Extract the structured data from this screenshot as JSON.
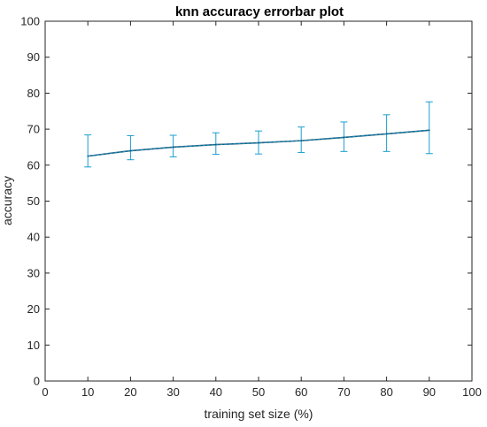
{
  "chart_data": {
    "type": "line",
    "title": "knn accuracy errorbar plot",
    "xlabel": "training set size (%)",
    "ylabel": "accuracy",
    "xlim": [
      0,
      100
    ],
    "ylim": [
      0,
      100
    ],
    "xticks": [
      0,
      10,
      20,
      30,
      40,
      50,
      60,
      70,
      80,
      90,
      100
    ],
    "yticks": [
      0,
      10,
      20,
      30,
      40,
      50,
      60,
      70,
      80,
      90,
      100
    ],
    "grid": false,
    "series": [
      {
        "color": "#1a9ecf",
        "line_color": "#1a5a7a",
        "errorbars": true,
        "x": [
          10,
          20,
          30,
          40,
          50,
          60,
          70,
          80,
          90
        ],
        "y": [
          62.5,
          64.0,
          65.0,
          65.7,
          66.2,
          66.8,
          67.7,
          68.7,
          69.7
        ],
        "lower": [
          59.5,
          61.5,
          62.3,
          63.0,
          63.1,
          63.5,
          63.8,
          63.8,
          63.2
        ],
        "upper": [
          68.4,
          68.2,
          68.3,
          69.0,
          69.5,
          70.6,
          72.0,
          74.0,
          77.6
        ]
      }
    ]
  }
}
